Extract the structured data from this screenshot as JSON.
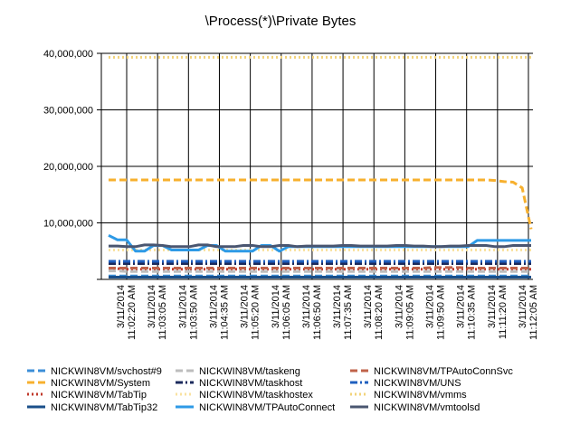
{
  "chart_data": {
    "type": "line",
    "title": "\\Process(*)\\Private Bytes",
    "xlabel": "",
    "ylabel": "",
    "ylim": [
      0,
      40000000
    ],
    "y_ticks": [
      "40,000,000",
      "30,000,000",
      "20,000,000",
      "10,000,000"
    ],
    "y_tick_values": [
      40000000,
      30000000,
      20000000,
      10000000
    ],
    "grid": true,
    "legend_position": "bottom",
    "x_tick_labels": [
      {
        "date": "3/11/2014",
        "time": "11:02:20 AM"
      },
      {
        "date": "3/11/2014",
        "time": "11:03:05 AM"
      },
      {
        "date": "3/11/2014",
        "time": "11:03:50 AM"
      },
      {
        "date": "3/11/2014",
        "time": "11:04:35 AM"
      },
      {
        "date": "3/11/2014",
        "time": "11:05:20 AM"
      },
      {
        "date": "3/11/2014",
        "time": "11:06:05 AM"
      },
      {
        "date": "3/11/2014",
        "time": "11:06:50 AM"
      },
      {
        "date": "3/11/2014",
        "time": "11:07:35 AM"
      },
      {
        "date": "3/11/2014",
        "time": "11:08:20 AM"
      },
      {
        "date": "3/11/2014",
        "time": "11:09:05 AM"
      },
      {
        "date": "3/11/2014",
        "time": "11:09:50 AM"
      },
      {
        "date": "3/11/2014",
        "time": "11:10:35 AM"
      },
      {
        "date": "3/11/2014",
        "time": "11:11:20 AM"
      },
      {
        "date": "3/11/2014",
        "time": "11:12:05 AM"
      }
    ],
    "series": [
      {
        "name": "NICKWIN8VM/svchost#9",
        "color": "#3c8fd8",
        "dash": "dash",
        "values": [
          600000,
          600000,
          600000,
          600000,
          600000,
          600000,
          600000,
          600000,
          600000,
          600000,
          600000,
          600000,
          600000,
          600000,
          600000,
          600000,
          600000,
          600000,
          600000,
          600000,
          600000,
          600000,
          600000,
          600000,
          600000,
          600000,
          600000,
          600000,
          600000,
          600000,
          600000,
          600000,
          600000,
          600000,
          600000,
          600000,
          600000,
          600000,
          600000,
          600000,
          600000,
          600000,
          600000,
          600000,
          600000,
          600000,
          600000,
          600000
        ]
      },
      {
        "name": "NICKWIN8VM/System",
        "color": "#f7b02e",
        "dash": "dash",
        "values": [
          17600000,
          17600000,
          17600000,
          17600000,
          17600000,
          17600000,
          17600000,
          17600000,
          17600000,
          17600000,
          17600000,
          17600000,
          17600000,
          17600000,
          17600000,
          17600000,
          17600000,
          17600000,
          17600000,
          17600000,
          17600000,
          17600000,
          17600000,
          17600000,
          17600000,
          17600000,
          17600000,
          17600000,
          17600000,
          17600000,
          17600000,
          17600000,
          17600000,
          17600000,
          17600000,
          17600000,
          17600000,
          17600000,
          17600000,
          17600000,
          17600000,
          17600000,
          17600000,
          17500000,
          17300000,
          17200000,
          16200000,
          8900000
        ]
      },
      {
        "name": "NICKWIN8VM/TabTip",
        "color": "#c0392b",
        "dash": "dot",
        "values": [
          1900000,
          1900000,
          1800000,
          1800000,
          1800000,
          1800000,
          1800000,
          1800000,
          1800000,
          1800000,
          1800000,
          1800000,
          1800000,
          1800000,
          1800000,
          1800000,
          1800000,
          1800000,
          1800000,
          1800000,
          1800000,
          1800000,
          1800000,
          1800000,
          1800000,
          1800000,
          1800000,
          1800000,
          1800000,
          1800000,
          1800000,
          1800000,
          1800000,
          1800000,
          1800000,
          1800000,
          1800000,
          1800000,
          1800000,
          1800000,
          1800000,
          1800000,
          1800000,
          1800000,
          1800000,
          1800000,
          1800000,
          1800000
        ]
      },
      {
        "name": "NICKWIN8VM/TabTip32",
        "color": "#1a4f8a",
        "dash": "solid",
        "values": [
          400000,
          400000,
          400000,
          400000,
          400000,
          400000,
          400000,
          400000,
          400000,
          400000,
          400000,
          400000,
          400000,
          400000,
          400000,
          400000,
          400000,
          400000,
          400000,
          400000,
          400000,
          400000,
          400000,
          400000,
          400000,
          400000,
          400000,
          400000,
          400000,
          400000,
          400000,
          400000,
          400000,
          400000,
          400000,
          400000,
          400000,
          400000,
          400000,
          400000,
          400000,
          400000,
          400000,
          400000,
          400000,
          400000,
          400000,
          400000
        ]
      },
      {
        "name": "NICKWIN8VM/taskeng",
        "color": "#bdbdbd",
        "dash": "dash",
        "values": [
          1500000,
          1500000,
          1400000,
          1400000,
          1400000,
          1400000,
          1400000,
          1400000,
          1400000,
          1400000,
          1400000,
          1400000,
          1400000,
          1400000,
          1400000,
          1400000,
          1400000,
          1400000,
          1400000,
          1400000,
          1400000,
          1400000,
          1400000,
          1400000,
          1400000,
          1400000,
          1400000,
          1400000,
          1400000,
          1400000,
          1400000,
          1400000,
          1400000,
          1400000,
          1400000,
          1400000,
          1400000,
          1400000,
          1400000,
          1400000,
          1400000,
          1400000,
          1400000,
          1400000,
          1400000,
          1400000,
          1400000,
          1400000
        ]
      },
      {
        "name": "NICKWIN8VM/taskhost",
        "color": "#1b2a5c",
        "dash": "dashdot",
        "values": [
          2800000,
          2800000,
          2800000,
          2800000,
          2800000,
          2800000,
          2800000,
          2800000,
          2800000,
          2800000,
          2800000,
          2800000,
          2800000,
          2800000,
          2800000,
          2800000,
          2800000,
          2800000,
          2800000,
          2800000,
          2800000,
          2800000,
          2800000,
          2800000,
          2800000,
          2800000,
          2800000,
          2800000,
          2800000,
          2800000,
          2800000,
          2800000,
          2800000,
          2800000,
          2800000,
          2800000,
          2800000,
          2800000,
          2800000,
          2800000,
          2800000,
          2800000,
          2800000,
          2800000,
          2800000,
          2800000,
          2800000,
          2800000
        ]
      },
      {
        "name": "NICKWIN8VM/taskhostex",
        "color": "#f9e2a0",
        "dash": "dot",
        "values": [
          5200000,
          5200000,
          5200000,
          5200000,
          5200000,
          5200000,
          5200000,
          5200000,
          5200000,
          5200000,
          5200000,
          5200000,
          5200000,
          5200000,
          5200000,
          5200000,
          5200000,
          5200000,
          5200000,
          5200000,
          5200000,
          5200000,
          5200000,
          5200000,
          5200000,
          5200000,
          5200000,
          5200000,
          5200000,
          5200000,
          5200000,
          5200000,
          5200000,
          5200000,
          5200000,
          5200000,
          5200000,
          5200000,
          5200000,
          5200000,
          5200000,
          5200000,
          5200000,
          5200000,
          5200000,
          5200000,
          5200000,
          5200000
        ]
      },
      {
        "name": "NICKWIN8VM/TPAutoConnect",
        "color": "#2e9ae6",
        "dash": "solid",
        "values": [
          7800000,
          7000000,
          7000000,
          5000000,
          5000000,
          6000000,
          6000000,
          5200000,
          5200000,
          5200000,
          5200000,
          6000000,
          6000000,
          5000000,
          5000000,
          5000000,
          5000000,
          6000000,
          6000000,
          5000000,
          5800000,
          5800000,
          5800000,
          5800000,
          5800000,
          5800000,
          5800000,
          5800000,
          5800000,
          5800000,
          5800000,
          5800000,
          5800000,
          5800000,
          5800000,
          5800000,
          5800000,
          5800000,
          5800000,
          5800000,
          5800000,
          6900000,
          6900000,
          6900000,
          6900000,
          6900000,
          6900000,
          6900000
        ]
      },
      {
        "name": "NICKWIN8VM/TPAutoConnSvc",
        "color": "#c0634a",
        "dash": "dash",
        "values": [
          2000000,
          2000000,
          2000000,
          2000000,
          2000000,
          2000000,
          2000000,
          2000000,
          2000000,
          2000000,
          2000000,
          2000000,
          2000000,
          2000000,
          2000000,
          2000000,
          2000000,
          2000000,
          2000000,
          2000000,
          2000000,
          2000000,
          2000000,
          2000000,
          2000000,
          2000000,
          2000000,
          2000000,
          2000000,
          2000000,
          2000000,
          2000000,
          2000000,
          2000000,
          2000000,
          2000000,
          2100000,
          2100000,
          2100000,
          2100000,
          2000000,
          2000000,
          2000000,
          2000000,
          2000000,
          2000000,
          2000000,
          2000000
        ]
      },
      {
        "name": "NICKWIN8VM/UNS",
        "color": "#1f5fbf",
        "dash": "dashdot",
        "values": [
          3200000,
          3200000,
          3200000,
          3200000,
          3200000,
          3200000,
          3200000,
          3200000,
          3200000,
          3200000,
          3200000,
          3200000,
          3200000,
          3200000,
          3200000,
          3200000,
          3200000,
          3200000,
          3200000,
          3200000,
          3200000,
          3200000,
          3200000,
          3200000,
          3200000,
          3200000,
          3200000,
          3200000,
          3200000,
          3200000,
          3200000,
          3200000,
          3200000,
          3200000,
          3200000,
          3200000,
          3200000,
          3200000,
          3200000,
          3200000,
          3200000,
          3200000,
          3200000,
          3200000,
          3200000,
          3200000,
          3200000,
          3200000
        ]
      },
      {
        "name": "NICKWIN8VM/vmms",
        "color": "#f2d37a",
        "dash": "dot",
        "values": [
          39300000,
          39300000,
          39300000,
          39300000,
          39300000,
          39300000,
          39300000,
          39300000,
          39300000,
          39300000,
          39300000,
          39300000,
          39300000,
          39300000,
          39300000,
          39300000,
          39300000,
          39300000,
          39300000,
          39300000,
          39300000,
          39300000,
          39300000,
          39300000,
          39300000,
          39300000,
          39300000,
          39300000,
          39300000,
          39300000,
          39300000,
          39300000,
          39300000,
          39300000,
          39300000,
          39300000,
          39300000,
          39300000,
          39300000,
          39300000,
          39300000,
          39300000,
          39300000,
          39300000,
          39300000,
          39300000,
          39300000,
          39300000
        ]
      },
      {
        "name": "NICKWIN8VM/vmtoolsd",
        "color": "#4a5670",
        "dash": "solid",
        "values": [
          5900000,
          5900000,
          5800000,
          5800000,
          6100000,
          6100000,
          6000000,
          5800000,
          5800000,
          5800000,
          6100000,
          6100000,
          5800000,
          5800000,
          5800000,
          6000000,
          6000000,
          5800000,
          5800000,
          6000000,
          6000000,
          5800000,
          5900000,
          5900000,
          5900000,
          5900000,
          6000000,
          6000000,
          5900000,
          5900000,
          5900000,
          5900000,
          6000000,
          6000000,
          5900000,
          5900000,
          5800000,
          5800000,
          5900000,
          5900000,
          6000000,
          6000000,
          6000000,
          5800000,
          5800000,
          6000000,
          6000000,
          6000000
        ]
      }
    ]
  }
}
